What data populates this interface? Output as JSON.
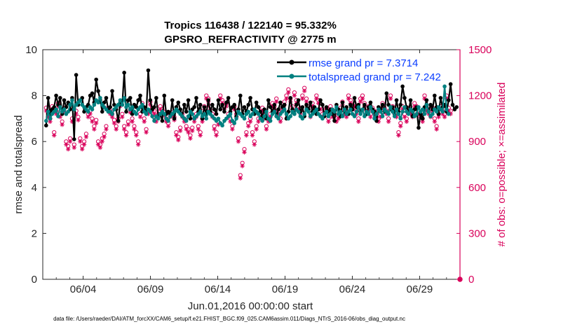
{
  "chart_data": {
    "type": "line",
    "title_line1": "Tropics 116438 / 122140 = 95.332%",
    "title_line2": "GPSRO_REFRACTIVITY @ 2775 m",
    "xlabel": "Jun.01,2016 00:00:00 start",
    "ylabel": "rmse and totalspread",
    "y2label": "# of obs: o=possible; ×=assimilated",
    "footnote": "data file: /Users/raeder/DAI/ATM_forcXX/CAM6_setup/f.e21.FHIST_BGC.f09_025.CAM6assim.011/Diags_NTrS_2016-06/obs_diag_output.nc",
    "xlim": [
      0,
      31
    ],
    "ylim": [
      0,
      10
    ],
    "y2lim": [
      0,
      1500
    ],
    "xticks": [
      3,
      8,
      13,
      18,
      23,
      28
    ],
    "xtick_labels": [
      "06/04",
      "06/09",
      "06/14",
      "06/19",
      "06/24",
      "06/29"
    ],
    "yticks": [
      0,
      2,
      4,
      6,
      8,
      10
    ],
    "ytick_labels": [
      "0",
      "2",
      "4",
      "6",
      "8",
      "10"
    ],
    "y2ticks": [
      0,
      300,
      600,
      900,
      1200,
      1500
    ],
    "y2tick_labels": [
      "0",
      "300",
      "600",
      "900",
      "1200",
      "1500"
    ],
    "colors": {
      "rmse": "#000000",
      "spread": "#008080",
      "obs": "#d9005a",
      "legend_text": "#0a3dff"
    },
    "series": [
      {
        "name": "rmse",
        "legend": "rmse grand pr = 7.3714",
        "values": [
          6.7,
          7.9,
          7.2,
          7.4,
          7.5,
          8.0,
          7.6,
          7.9,
          7.2,
          7.8,
          7.5,
          7.7,
          7.4,
          7.9,
          6.1,
          8.9,
          7.6,
          7.8,
          7.9,
          7.3,
          7.5,
          7.6,
          8.0,
          8.1,
          7.7,
          8.7,
          8.2,
          7.8,
          7.3,
          7.7,
          7.9,
          7.4,
          7.5,
          8.2,
          7.6,
          7.4,
          6.9,
          7.7,
          7.6,
          9.0,
          7.3,
          7.8,
          7.9,
          7.2,
          7.6,
          7.5,
          7.8,
          8.0,
          7.3,
          7.5,
          7.2,
          9.1,
          7.8,
          7.4,
          7.5,
          7.9,
          7.1,
          7.2,
          6.9,
          8.0,
          7.2,
          7.3,
          7.1,
          7.8,
          7.0,
          7.5,
          7.7,
          7.4,
          7.1,
          7.6,
          7.3,
          7.8,
          7.0,
          7.4,
          7.5,
          7.9,
          7.3,
          7.6,
          7.0,
          7.5,
          7.2,
          7.8,
          7.3,
          7.6,
          7.4,
          7.2,
          7.8,
          7.4,
          7.6,
          7.3,
          7.7,
          7.9,
          7.3,
          7.5,
          7.6,
          7.1,
          7.4,
          8.0,
          7.2,
          7.5,
          7.3,
          7.6,
          7.9,
          7.4,
          7.2,
          7.7,
          7.5,
          7.3,
          7.1,
          7.4,
          7.0,
          7.8,
          7.5,
          7.3,
          7.6,
          7.1,
          7.4,
          7.7,
          7.5,
          7.6,
          7.0,
          7.3,
          7.9,
          7.4,
          7.2,
          7.6,
          7.8,
          7.3,
          7.5,
          7.1,
          7.6,
          7.4,
          7.7,
          7.3,
          7.5,
          7.2,
          7.4,
          7.8,
          7.6,
          7.1,
          7.5,
          7.3,
          7.4,
          7.2,
          6.9,
          7.6,
          7.4,
          7.1,
          7.7,
          7.3,
          7.5,
          7.2,
          7.6,
          7.4,
          7.9,
          7.5,
          7.6,
          7.3,
          7.4,
          7.6,
          7.2,
          7.5,
          7.7,
          7.4,
          7.3,
          6.9,
          7.5,
          7.4,
          7.6,
          7.3,
          8.1,
          7.6,
          7.4,
          7.5,
          7.2,
          7.8,
          7.3,
          7.6,
          8.4,
          7.9,
          7.5,
          7.3,
          7.8,
          7.1,
          7.4,
          7.5,
          6.6,
          7.2,
          7.0,
          7.5,
          7.8,
          7.3,
          7.6,
          7.4,
          8.0,
          7.5,
          7.2,
          7.9,
          7.5,
          7.6,
          7.3,
          7.8,
          8.5,
          7.6,
          7.4,
          7.5
        ]
      },
      {
        "name": "totalspread",
        "legend": "totalspread grand pr = 7.242",
        "values": [
          6.9,
          7.3,
          7.0,
          7.2,
          7.3,
          7.4,
          7.1,
          7.5,
          7.3,
          7.4,
          7.2,
          7.3,
          7.6,
          7.8,
          7.4,
          7.6,
          7.7,
          7.8,
          7.6,
          7.5,
          7.4,
          7.3,
          7.5,
          7.4,
          7.6,
          7.8,
          7.7,
          7.9,
          7.6,
          7.5,
          7.4,
          7.3,
          7.3,
          7.2,
          7.4,
          7.5,
          7.6,
          7.8,
          7.6,
          7.9,
          7.5,
          7.6,
          7.4,
          7.5,
          7.3,
          7.2,
          7.4,
          7.5,
          7.6,
          7.3,
          7.2,
          7.4,
          7.3,
          7.1,
          6.9,
          7.1,
          7.0,
          7.2,
          7.3,
          7.2,
          7.0,
          6.9,
          7.1,
          7.2,
          7.3,
          7.4,
          7.3,
          7.2,
          7.1,
          7.0,
          6.9,
          7.1,
          7.3,
          7.2,
          7.0,
          7.1,
          7.2,
          7.3,
          7.1,
          7.2,
          7.0,
          7.3,
          7.2,
          7.1,
          7.0,
          6.9,
          7.0,
          6.8,
          6.7,
          6.9,
          7.0,
          7.1,
          7.2,
          6.9,
          6.8,
          7.0,
          7.3,
          7.2,
          7.1,
          7.0,
          7.2,
          7.3,
          7.1,
          7.2,
          7.4,
          7.3,
          7.2,
          7.0,
          6.9,
          7.1,
          7.3,
          7.0,
          6.9,
          7.2,
          7.3,
          7.1,
          7.0,
          7.2,
          7.3,
          7.4,
          7.2,
          7.0,
          7.1,
          7.3,
          7.2,
          7.4,
          7.3,
          7.1,
          7.0,
          7.2,
          7.4,
          7.3,
          7.1,
          7.2,
          7.3,
          7.4,
          7.2,
          7.1,
          7.0,
          7.2,
          7.3,
          7.1,
          7.2,
          7.4,
          7.3,
          7.5,
          7.2,
          7.3,
          7.1,
          7.4,
          7.2,
          7.3,
          7.4,
          7.2,
          7.1,
          7.3,
          7.5,
          7.2,
          7.4,
          7.1,
          7.3,
          7.2,
          7.5,
          7.3,
          7.0,
          7.2,
          7.4,
          7.3,
          7.1,
          7.4,
          7.3,
          7.2,
          7.5,
          7.3,
          7.1,
          7.4,
          7.2,
          7.0,
          7.3,
          7.5,
          7.3,
          7.2,
          7.4,
          7.3,
          7.1,
          7.2,
          7.5,
          7.3,
          7.4,
          7.2,
          7.6,
          7.3,
          7.1,
          7.2,
          7.4,
          7.3,
          7.5,
          7.4,
          7.3,
          8.4,
          7.4,
          7.2
        ]
      },
      {
        "name": "obs_possible",
        "values": [
          1120,
          1080,
          1050,
          1130,
          960,
          1100,
          1150,
          1080,
          1030,
          1120,
          900,
          870,
          920,
          1050,
          880,
          1100,
          1060,
          920,
          870,
          900,
          950,
          1080,
          1100,
          1050,
          1000,
          1040,
          900,
          880,
          920,
          950,
          1000,
          1120,
          1100,
          1080,
          1040,
          1000,
          1050,
          1150,
          1080,
          1000,
          960,
          1030,
          1110,
          1050,
          1000,
          960,
          900,
          1080,
          1150,
          1050,
          980,
          1100,
          1160,
          1120,
          1100,
          1050,
          1080,
          1130,
          1110,
          1090,
          1050,
          1020,
          1080,
          1090,
          1060,
          960,
          930,
          990,
          1080,
          1050,
          1000,
          980,
          940,
          990,
          1050,
          1080,
          1000,
          960,
          1050,
          1130,
          1200,
          1180,
          1130,
          1080,
          1000,
          960,
          1030,
          1200,
          1170,
          1130,
          1150,
          1080,
          1050,
          1000,
          1130,
          1080,
          920,
          680,
          760,
          850,
          960,
          1020,
          1050,
          960,
          900,
          1000,
          1050,
          1080,
          1120,
          1070,
          1000,
          1050,
          1080,
          1150,
          1130,
          1180,
          1100,
          1050,
          1120,
          1160,
          1200,
          1240,
          1180,
          1130,
          1220,
          1170,
          1130,
          1100,
          1200,
          1250,
          1180,
          1130,
          1080,
          1150,
          1120,
          1200,
          1170,
          1130,
          1080,
          1100,
          1120,
          1050,
          1130,
          1080,
          1100,
          1050,
          1070,
          1120,
          1160,
          1100,
          1080,
          1200,
          1170,
          1130,
          1150,
          1100,
          1050,
          1180,
          1200,
          1150,
          1100,
          1130,
          1080,
          1120,
          1100,
          1060,
          1050,
          1080,
          1150,
          1120,
          1100,
          1050,
          1200,
          1130,
          1100,
          1080,
          960,
          1020,
          1130,
          1080,
          1050,
          1120,
          1100,
          1080,
          1150,
          1130,
          1100,
          1080,
          1050,
          1200,
          1120,
          1100,
          1080,
          1120,
          1050,
          1000,
          1080,
          1130,
          1100,
          1080,
          1200,
          1120,
          1100
        ]
      },
      {
        "name": "obs_assimilated",
        "values": [
          1100,
          1060,
          1030,
          1110,
          940,
          1080,
          1130,
          1060,
          1010,
          1100,
          880,
          850,
          900,
          1030,
          860,
          1080,
          1040,
          900,
          850,
          880,
          930,
          1060,
          1080,
          1030,
          980,
          1020,
          880,
          860,
          900,
          930,
          980,
          1100,
          1080,
          1060,
          1020,
          980,
          1030,
          1130,
          1060,
          980,
          940,
          1010,
          1090,
          1030,
          980,
          940,
          880,
          1060,
          1130,
          1030,
          960,
          1080,
          1140,
          1100,
          1080,
          1030,
          1060,
          1110,
          1090,
          1070,
          1030,
          1000,
          1060,
          1070,
          1040,
          940,
          910,
          970,
          1060,
          1030,
          980,
          960,
          920,
          970,
          1030,
          1060,
          980,
          940,
          1030,
          1110,
          1180,
          1160,
          1110,
          1060,
          980,
          940,
          1010,
          1180,
          1150,
          1110,
          1130,
          1060,
          1030,
          980,
          1110,
          1060,
          900,
          660,
          740,
          830,
          940,
          1000,
          1030,
          940,
          880,
          980,
          1030,
          1060,
          1100,
          1050,
          980,
          1030,
          1060,
          1130,
          1110,
          1160,
          1080,
          1030,
          1100,
          1140,
          1180,
          1220,
          1160,
          1110,
          1200,
          1150,
          1110,
          1080,
          1180,
          1230,
          1160,
          1110,
          1060,
          1130,
          1100,
          1180,
          1150,
          1110,
          1060,
          1080,
          1100,
          1030,
          1110,
          1060,
          1080,
          1030,
          1050,
          1100,
          1140,
          1080,
          1060,
          1180,
          1150,
          1110,
          1130,
          1080,
          1030,
          1160,
          1180,
          1130,
          1080,
          1110,
          1060,
          1100,
          1080,
          1040,
          1030,
          1060,
          1130,
          1100,
          1080,
          1030,
          1180,
          1110,
          1080,
          1060,
          940,
          1000,
          1110,
          1060,
          1030,
          1100,
          1080,
          1060,
          1130,
          1110,
          1080,
          1060,
          1030,
          1180,
          1100,
          1080,
          1060,
          1100,
          1030,
          980,
          1060,
          1110,
          1080,
          1060,
          1180,
          1100,
          1080
        ]
      }
    ],
    "final_marker": {
      "x": 31,
      "y2": 0
    }
  }
}
